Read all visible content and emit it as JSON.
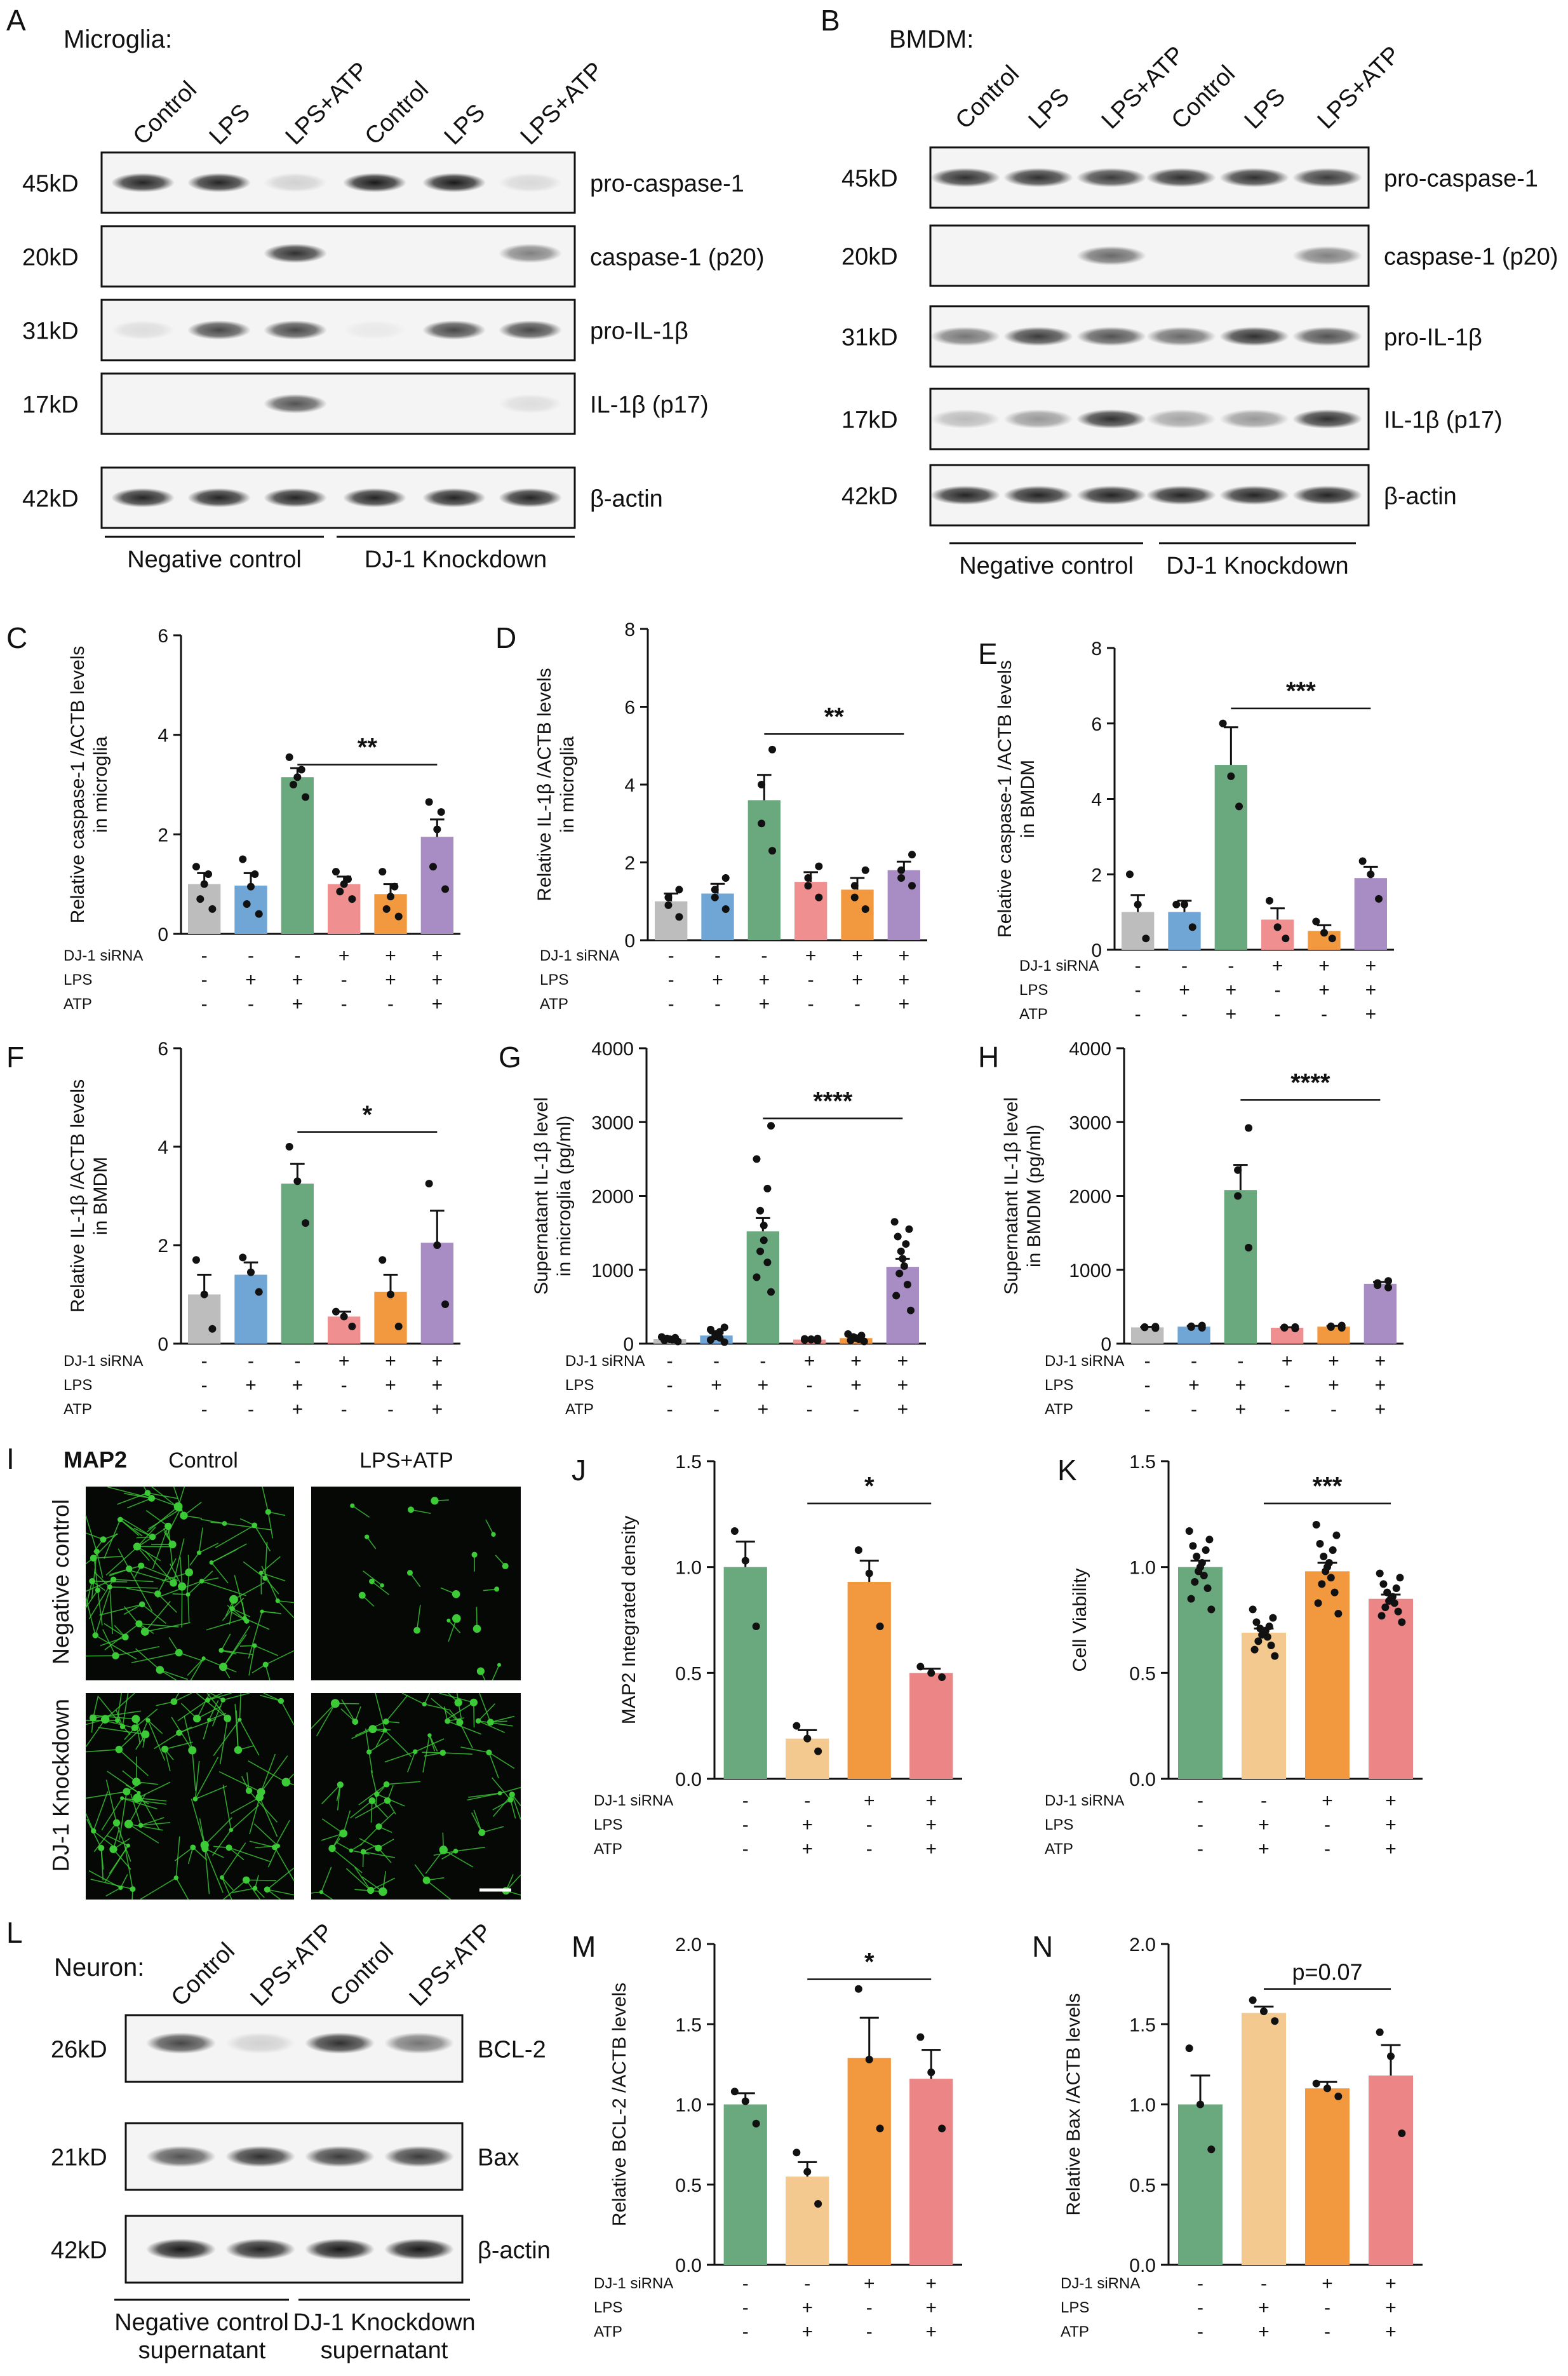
{
  "colors": {
    "grey": "#bdbdbd",
    "blue": "#6fa6d6",
    "green": "#6aa87e",
    "pink": "#ef8f8f",
    "orange": "#f2993f",
    "purple": "#a88cc4",
    "sand": "#f3c98f",
    "salmon": "#ec8585",
    "fluor": "#3fd63a"
  },
  "panelA": {
    "letter": "A",
    "title": "Microglia:",
    "lanes": [
      "Control",
      "LPS",
      "LPS+ATP",
      "Control",
      "LPS",
      "LPS+ATP"
    ],
    "sizes": [
      "45kD",
      "20kD",
      "31kD",
      "17kD",
      "42kD"
    ],
    "bands": [
      "pro-caspase-1",
      "caspase-1 (p20)",
      "pro-IL-1β",
      "IL-1β (p17)",
      "β-actin"
    ],
    "groups": [
      "Negative control",
      "DJ-1 Knockdown"
    ]
  },
  "panelB": {
    "letter": "B",
    "title": "BMDM:",
    "lanes": [
      "Control",
      "LPS",
      "LPS+ATP",
      "Control",
      "LPS",
      "LPS+ATP"
    ],
    "sizes": [
      "45kD",
      "20kD",
      "31kD",
      "17kD",
      "42kD"
    ],
    "bands": [
      "pro-caspase-1",
      "caspase-1 (p20)",
      "pro-IL-1β",
      "IL-1β (p17)",
      "β-actin"
    ],
    "groups": [
      "Negative control",
      "DJ-1 Knockdown"
    ]
  },
  "panelI": {
    "letter": "I",
    "stain": "MAP2",
    "cols": [
      "Control",
      "LPS+ATP"
    ],
    "rows": [
      "Negative control",
      "DJ-1 Knockdown"
    ]
  },
  "panelL": {
    "letter": "L",
    "title": "Neuron:",
    "lanes": [
      "Control",
      "LPS+ATP",
      "Control",
      "LPS+ATP"
    ],
    "sizes": [
      "26kD",
      "21kD",
      "42kD"
    ],
    "bands": [
      "BCL-2",
      "Bax",
      "β-actin"
    ],
    "groups": [
      "Negative control",
      "DJ-1 Knockdown"
    ],
    "group_sub": "supernatant"
  },
  "chart_data": [
    {
      "letter": "C",
      "type": "bar",
      "ylabel": [
        "Relative caspase-1 /ACTB levels",
        "in microglia"
      ],
      "ylim": [
        0,
        6
      ],
      "yticks": [
        0,
        2,
        4,
        6
      ],
      "values": [
        1.0,
        0.97,
        3.15,
        1.0,
        0.8,
        1.95
      ],
      "errors": [
        0.22,
        0.25,
        0.18,
        0.15,
        0.2,
        0.35
      ],
      "points": [
        [
          0.5,
          0.7,
          1.0,
          1.2,
          1.35
        ],
        [
          0.4,
          0.6,
          0.95,
          1.2,
          1.5
        ],
        [
          2.75,
          3.0,
          3.15,
          3.3,
          3.55
        ],
        [
          0.7,
          0.85,
          1.0,
          1.1,
          1.25
        ],
        [
          0.35,
          0.5,
          0.75,
          0.95,
          1.25
        ],
        [
          0.9,
          1.35,
          2.1,
          2.45,
          2.65
        ]
      ],
      "colors": [
        "grey",
        "blue",
        "green",
        "pink",
        "orange",
        "purple"
      ],
      "sig": {
        "text": "**",
        "from": 2,
        "to": 5,
        "y": 3.4
      },
      "rows": [
        [
          "DJ-1 siRNA",
          "-",
          "-",
          "-",
          "+",
          "+",
          "+"
        ],
        [
          "LPS",
          "-",
          "+",
          "+",
          "-",
          "+",
          "+"
        ],
        [
          "ATP",
          "-",
          "-",
          "+",
          "-",
          "-",
          "+"
        ]
      ]
    },
    {
      "letter": "D",
      "type": "bar",
      "ylabel": [
        "Relative IL-1β /ACTB levels",
        "in microglia"
      ],
      "ylim": [
        0,
        8
      ],
      "yticks": [
        0,
        2,
        4,
        6,
        8
      ],
      "values": [
        1.0,
        1.2,
        3.6,
        1.5,
        1.3,
        1.8
      ],
      "errors": [
        0.2,
        0.25,
        0.65,
        0.25,
        0.3,
        0.22
      ],
      "points": [
        [
          0.6,
          0.9,
          1.1,
          1.3
        ],
        [
          0.8,
          1.1,
          1.3,
          1.6
        ],
        [
          2.3,
          3.0,
          4.0,
          4.9
        ],
        [
          1.1,
          1.4,
          1.6,
          1.9
        ],
        [
          0.8,
          1.1,
          1.4,
          1.8
        ],
        [
          1.4,
          1.6,
          1.8,
          2.2
        ]
      ],
      "colors": [
        "grey",
        "blue",
        "green",
        "pink",
        "orange",
        "purple"
      ],
      "sig": {
        "text": "**",
        "from": 2,
        "to": 5,
        "y": 5.3
      },
      "rows": [
        [
          "DJ-1 siRNA",
          "-",
          "-",
          "-",
          "+",
          "+",
          "+"
        ],
        [
          "LPS",
          "-",
          "+",
          "+",
          "-",
          "+",
          "+"
        ],
        [
          "ATP",
          "-",
          "-",
          "+",
          "-",
          "-",
          "+"
        ]
      ]
    },
    {
      "letter": "E",
      "type": "bar",
      "ylabel": [
        "Relative caspase-1 /ACTB levels",
        "in BMDM"
      ],
      "ylim": [
        0,
        8
      ],
      "yticks": [
        0,
        2,
        4,
        6,
        8
      ],
      "values": [
        1.0,
        1.0,
        4.9,
        0.8,
        0.5,
        1.9
      ],
      "errors": [
        0.45,
        0.3,
        1.0,
        0.3,
        0.15,
        0.3
      ],
      "points": [
        [
          0.3,
          1.2,
          2.0
        ],
        [
          0.6,
          1.2,
          1.2
        ],
        [
          3.8,
          4.6,
          6.0
        ],
        [
          0.3,
          0.6,
          1.3
        ],
        [
          0.3,
          0.45,
          0.75
        ],
        [
          1.35,
          2.0,
          2.35
        ]
      ],
      "colors": [
        "grey",
        "blue",
        "green",
        "pink",
        "orange",
        "purple"
      ],
      "sig": {
        "text": "***",
        "from": 2,
        "to": 5,
        "y": 6.4
      },
      "rows": [
        [
          "DJ-1 siRNA",
          "-",
          "-",
          "-",
          "+",
          "+",
          "+"
        ],
        [
          "LPS",
          "-",
          "+",
          "+",
          "-",
          "+",
          "+"
        ],
        [
          "ATP",
          "-",
          "-",
          "+",
          "-",
          "-",
          "+"
        ]
      ]
    },
    {
      "letter": "F",
      "type": "bar",
      "ylabel": [
        "Relative IL-1β /ACTB levels",
        "in BMDM"
      ],
      "ylim": [
        0,
        6
      ],
      "yticks": [
        0,
        2,
        4,
        6
      ],
      "values": [
        1.0,
        1.4,
        3.25,
        0.55,
        1.05,
        2.05
      ],
      "errors": [
        0.4,
        0.25,
        0.4,
        0.1,
        0.35,
        0.65
      ],
      "points": [
        [
          0.3,
          1.0,
          1.7
        ],
        [
          1.05,
          1.45,
          1.75
        ],
        [
          2.45,
          3.3,
          4.0
        ],
        [
          0.35,
          0.55,
          0.65
        ],
        [
          0.35,
          1.0,
          1.7
        ],
        [
          0.8,
          2.0,
          3.25
        ]
      ],
      "colors": [
        "grey",
        "blue",
        "green",
        "pink",
        "orange",
        "purple"
      ],
      "sig": {
        "text": "*",
        "from": 2,
        "to": 5,
        "y": 4.3
      },
      "rows": [
        [
          "DJ-1 siRNA",
          "-",
          "-",
          "-",
          "+",
          "+",
          "+"
        ],
        [
          "LPS",
          "-",
          "+",
          "+",
          "-",
          "+",
          "+"
        ],
        [
          "ATP",
          "-",
          "-",
          "+",
          "-",
          "-",
          "+"
        ]
      ]
    },
    {
      "letter": "G",
      "type": "bar",
      "ylabel": [
        "Supernatant IL-1β level",
        "in microglia  (pg/ml)"
      ],
      "ylim": [
        0,
        4000
      ],
      "yticks": [
        0,
        1000,
        2000,
        3000,
        4000
      ],
      "values": [
        60,
        110,
        1520,
        55,
        75,
        1040
      ],
      "errors": [
        10,
        30,
        180,
        8,
        15,
        110
      ],
      "points": [
        [
          30,
          45,
          55,
          60,
          70,
          80,
          90
        ],
        [
          20,
          50,
          80,
          100,
          130,
          160,
          190,
          220
        ],
        [
          700,
          900,
          1100,
          1250,
          1400,
          1600,
          1800,
          2100,
          2500,
          2950
        ],
        [
          40,
          50,
          55,
          60,
          65,
          70
        ],
        [
          30,
          45,
          60,
          75,
          90,
          110,
          130
        ],
        [
          450,
          650,
          800,
          950,
          1050,
          1150,
          1250,
          1350,
          1450,
          1550,
          1650
        ]
      ],
      "colors": [
        "grey",
        "blue",
        "green",
        "pink",
        "orange",
        "purple"
      ],
      "sig": {
        "text": "****",
        "from": 2,
        "to": 5,
        "y": 3050
      },
      "rows": [
        [
          "DJ-1 siRNA",
          "-",
          "-",
          "-",
          "+",
          "+",
          "+"
        ],
        [
          "LPS",
          "-",
          "+",
          "+",
          "-",
          "+",
          "+"
        ],
        [
          "ATP",
          "-",
          "-",
          "+",
          "-",
          "-",
          "+"
        ]
      ]
    },
    {
      "letter": "H",
      "type": "bar",
      "ylabel": [
        "Supernatant IL-1β level",
        "in BMDM  (pg/ml)"
      ],
      "ylim": [
        0,
        4000
      ],
      "yticks": [
        0,
        1000,
        2000,
        3000,
        4000
      ],
      "values": [
        220,
        230,
        2080,
        215,
        230,
        810
      ],
      "errors": [
        8,
        10,
        340,
        8,
        10,
        25
      ],
      "points": [
        [
          210,
          220,
          225,
          230
        ],
        [
          215,
          225,
          235,
          245
        ],
        [
          1300,
          2000,
          2350,
          2920
        ],
        [
          205,
          215,
          220,
          225
        ],
        [
          215,
          225,
          235,
          245
        ],
        [
          760,
          790,
          820,
          850
        ]
      ],
      "colors": [
        "grey",
        "blue",
        "green",
        "pink",
        "orange",
        "purple"
      ],
      "sig": {
        "text": "****",
        "from": 2,
        "to": 5,
        "y": 3300
      },
      "rows": [
        [
          "DJ-1 siRNA",
          "-",
          "-",
          "-",
          "+",
          "+",
          "+"
        ],
        [
          "LPS",
          "-",
          "+",
          "+",
          "-",
          "+",
          "+"
        ],
        [
          "ATP",
          "-",
          "-",
          "+",
          "-",
          "-",
          "+"
        ]
      ]
    },
    {
      "letter": "J",
      "type": "bar",
      "ylabel": [
        "MAP2 Integrated density"
      ],
      "ylim": [
        0,
        1.5
      ],
      "yticks": [
        0.0,
        0.5,
        1.0,
        1.5
      ],
      "decimals": 1,
      "values": [
        1.0,
        0.19,
        0.93,
        0.5
      ],
      "errors": [
        0.12,
        0.04,
        0.1,
        0.02
      ],
      "points": [
        [
          0.72,
          1.03,
          1.17
        ],
        [
          0.13,
          0.19,
          0.25
        ],
        [
          0.72,
          0.97,
          1.08
        ],
        [
          0.48,
          0.5,
          0.53
        ]
      ],
      "colors": [
        "green",
        "sand",
        "orange",
        "salmon"
      ],
      "sig": {
        "text": "*",
        "from": 1,
        "to": 3,
        "y": 1.3
      },
      "rows": [
        [
          "DJ-1 siRNA",
          "-",
          "-",
          "+",
          "+"
        ],
        [
          "LPS",
          "-",
          "+",
          "-",
          "+"
        ],
        [
          "ATP",
          "-",
          "+",
          "-",
          "+"
        ]
      ]
    },
    {
      "letter": "K",
      "type": "bar",
      "ylabel": [
        "Cell Viability"
      ],
      "ylim": [
        0,
        1.5
      ],
      "yticks": [
        0.0,
        0.5,
        1.0,
        1.5
      ],
      "decimals": 1,
      "values": [
        1.0,
        0.69,
        0.98,
        0.85
      ],
      "errors": [
        0.03,
        0.02,
        0.04,
        0.02
      ],
      "points": [
        [
          0.8,
          0.85,
          0.9,
          0.93,
          0.96,
          0.98,
          1.0,
          1.02,
          1.05,
          1.08,
          1.1,
          1.13,
          1.17
        ],
        [
          0.58,
          0.61,
          0.63,
          0.65,
          0.67,
          0.68,
          0.69,
          0.7,
          0.71,
          0.72,
          0.74,
          0.76,
          0.8
        ],
        [
          0.78,
          0.83,
          0.88,
          0.92,
          0.95,
          0.98,
          1.0,
          1.02,
          1.05,
          1.08,
          1.11,
          1.15,
          1.2
        ],
        [
          0.74,
          0.77,
          0.79,
          0.81,
          0.83,
          0.84,
          0.85,
          0.86,
          0.88,
          0.9,
          0.92,
          0.95,
          0.97
        ]
      ],
      "colors": [
        "green",
        "sand",
        "orange",
        "salmon"
      ],
      "sig": {
        "text": "***",
        "from": 1,
        "to": 3,
        "y": 1.3
      },
      "rows": [
        [
          "DJ-1 siRNA",
          "-",
          "-",
          "+",
          "+"
        ],
        [
          "LPS",
          "-",
          "+",
          "-",
          "+"
        ],
        [
          "ATP",
          "-",
          "+",
          "-",
          "+"
        ]
      ]
    },
    {
      "letter": "M",
      "type": "bar",
      "ylabel": [
        "Relative BCL-2 /ACTB levels"
      ],
      "ylim": [
        0,
        2.0
      ],
      "yticks": [
        0.0,
        0.5,
        1.0,
        1.5,
        2.0
      ],
      "decimals": 1,
      "values": [
        1.0,
        0.55,
        1.29,
        1.16
      ],
      "errors": [
        0.07,
        0.09,
        0.25,
        0.18
      ],
      "points": [
        [
          0.88,
          1.02,
          1.08
        ],
        [
          0.38,
          0.58,
          0.7
        ],
        [
          0.85,
          1.28,
          1.72
        ],
        [
          0.85,
          1.2,
          1.42
        ]
      ],
      "colors": [
        "green",
        "sand",
        "orange",
        "salmon"
      ],
      "sig": {
        "text": "*",
        "from": 1,
        "to": 3,
        "y": 1.78
      },
      "rows": [
        [
          "DJ-1 siRNA",
          "-",
          "-",
          "+",
          "+"
        ],
        [
          "LPS",
          "-",
          "+",
          "-",
          "+"
        ],
        [
          "ATP",
          "-",
          "+",
          "-",
          "+"
        ]
      ]
    },
    {
      "letter": "N",
      "type": "bar",
      "ylabel": [
        "Relative Bax /ACTB levels"
      ],
      "ylim": [
        0,
        2.0
      ],
      "yticks": [
        0.0,
        0.5,
        1.0,
        1.5,
        2.0
      ],
      "decimals": 1,
      "values": [
        1.0,
        1.57,
        1.1,
        1.18
      ],
      "errors": [
        0.18,
        0.04,
        0.04,
        0.19
      ],
      "points": [
        [
          0.72,
          1.0,
          1.35
        ],
        [
          1.52,
          1.58,
          1.65
        ],
        [
          1.05,
          1.1,
          1.13
        ],
        [
          0.82,
          1.3,
          1.45
        ]
      ],
      "colors": [
        "green",
        "sand",
        "orange",
        "salmon"
      ],
      "sig": {
        "text": "p=0.07",
        "from": 1,
        "to": 3,
        "y": 1.72
      },
      "rows": [
        [
          "DJ-1 siRNA",
          "-",
          "-",
          "+",
          "+"
        ],
        [
          "LPS",
          "-",
          "+",
          "-",
          "+"
        ],
        [
          "ATP",
          "-",
          "+",
          "-",
          "+"
        ]
      ]
    }
  ]
}
